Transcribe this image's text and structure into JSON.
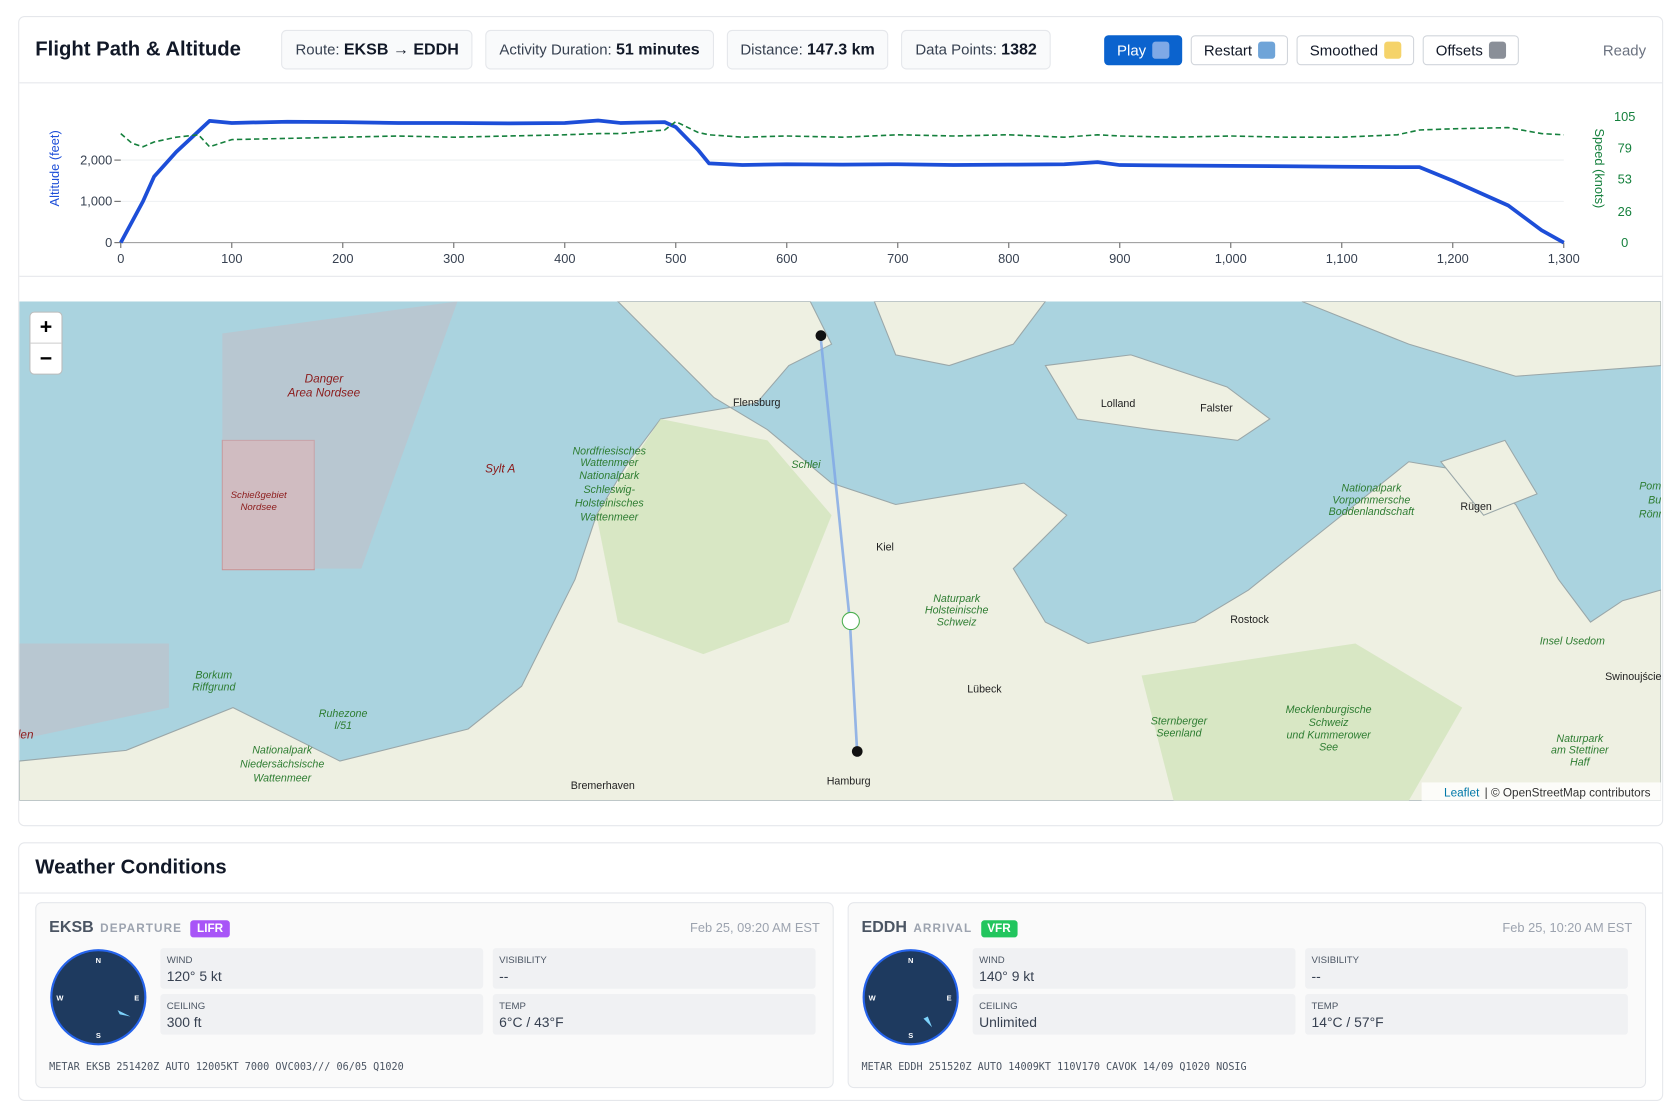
{
  "header": {
    "title": "Flight Path & Altitude",
    "stats": [
      {
        "label": "Route:",
        "value": "EKSB → EDDH"
      },
      {
        "label": "Activity Duration:",
        "value": "51 minutes"
      },
      {
        "label": "Distance:",
        "value": "147.3 km"
      },
      {
        "label": "Data Points:",
        "value": "1382"
      }
    ],
    "buttons": [
      "Play",
      "Restart",
      "Smoothed",
      "Offsets"
    ],
    "status": "Ready"
  },
  "chart_data": {
    "type": "line",
    "y_label": "Altitude (feet)",
    "y2_label": "Speed (knots)",
    "x": [
      0,
      10,
      20,
      30,
      50,
      70,
      80,
      100,
      150,
      200,
      250,
      300,
      350,
      400,
      430,
      450,
      490,
      500,
      520,
      530,
      560,
      600,
      650,
      700,
      750,
      800,
      850,
      880,
      900,
      950,
      1000,
      1050,
      1100,
      1150,
      1170,
      1200,
      1250,
      1280,
      1300
    ],
    "series": [
      {
        "name": "Altitude",
        "color": "#1d4ed8",
        "dashed": false,
        "values": [
          0,
          500,
          1000,
          1600,
          2200,
          2700,
          2950,
          2900,
          2930,
          2920,
          2900,
          2900,
          2890,
          2900,
          2960,
          2900,
          2920,
          2800,
          2250,
          1920,
          1880,
          1900,
          1890,
          1900,
          1880,
          1890,
          1900,
          1950,
          1880,
          1870,
          1860,
          1850,
          1840,
          1830,
          1830,
          1500,
          900,
          300,
          0
        ]
      },
      {
        "name": "Speed",
        "color": "#15803d",
        "dashed": true,
        "axis": "y2",
        "values": [
          91,
          83,
          80,
          84,
          88,
          90,
          80,
          86,
          87,
          88,
          89,
          88,
          89,
          90,
          91,
          91,
          94,
          101,
          92,
          90,
          88,
          89,
          88,
          90,
          89,
          90,
          88,
          90,
          89,
          88,
          89,
          88,
          88,
          90,
          94,
          95,
          96,
          91,
          90
        ]
      }
    ],
    "xlim": [
      0,
      1300
    ],
    "xticks": [
      0,
      100,
      200,
      300,
      400,
      500,
      600,
      700,
      800,
      900,
      {
        "value": 1000,
        "label": "1,000"
      },
      {
        "value": 1100,
        "label": "1,100"
      },
      {
        "value": 1200,
        "label": "1,200"
      },
      {
        "value": 1300,
        "label": "1,300"
      }
    ],
    "ylim": [
      0,
      3600
    ],
    "yticks": [
      0,
      {
        "value": 1000,
        "label": "1,000"
      },
      {
        "value": 2000,
        "label": "2,000"
      }
    ],
    "y2lim": [
      0,
      124
    ],
    "y2ticks": [
      0,
      26,
      53,
      79,
      105
    ],
    "grid": true
  },
  "map": {
    "zoom_in": "+",
    "zoom_out": "−",
    "attribution_link": "Leaflet",
    "attribution": "| © OpenStreetMap contributors",
    "labels": [
      "Danger",
      "Area Nordsee",
      "Schießgebiet",
      "Nordsee",
      "Sylt A",
      "Flensburg",
      "Nordfriesisches",
      "Wattenmeer",
      "Nationalpark",
      "Schleswig-",
      "Holsteinisches",
      "Wattenmeer",
      "Schlei",
      "Kiel",
      "Naturpark",
      "Holsteinische",
      "Schweiz",
      "Lolland",
      "Falster",
      "Nationalpark",
      "Vorpommersche",
      "Boddenlandschaft",
      "Rügen",
      "Pomm",
      "Bu",
      "Rönne",
      "Rostock",
      "Insel Usedom",
      "Swinoujście",
      "Lübeck",
      "Borkum",
      "Riffgrund",
      "Ruhezone",
      "I/51",
      "Nationalpark",
      "Niedersächsische",
      "Wattenmeer",
      "Bremerhaven",
      "Hamburg",
      "Sternberger",
      "Seenland",
      "Mecklenburgische",
      "Schweiz",
      "und Kummerower",
      "See",
      "Naturpark",
      "am Stettiner",
      "Haff",
      "len"
    ]
  },
  "weather": {
    "title": "Weather Conditions",
    "stations": [
      {
        "code": "EKSB",
        "role": "DEPARTURE",
        "category": "LIFR",
        "time": "Feb 25, 09:20 AM EST",
        "compass": [
          "N",
          "E",
          "S",
          "W"
        ],
        "fields": [
          {
            "label": "WIND",
            "value": "120° 5 kt"
          },
          {
            "label": "VISIBILITY",
            "value": "--"
          },
          {
            "label": "CEILING",
            "value": "300 ft"
          },
          {
            "label": "TEMP",
            "value": "6°C / 43°F"
          }
        ],
        "metar": "METAR EKSB 251420Z AUTO 12005KT 7000 OVC003/// 06/05 Q1020"
      },
      {
        "code": "EDDH",
        "role": "ARRIVAL",
        "category": "VFR",
        "time": "Feb 25, 10:20 AM EST",
        "compass": [
          "N",
          "E",
          "S",
          "W"
        ],
        "fields": [
          {
            "label": "WIND",
            "value": "140° 9 kt"
          },
          {
            "label": "VISIBILITY",
            "value": "--"
          },
          {
            "label": "CEILING",
            "value": "Unlimited"
          },
          {
            "label": "TEMP",
            "value": "14°C / 57°F"
          }
        ],
        "metar": "METAR EDDH 251520Z AUTO 14009KT 110V170 CAVOK 14/09 Q1020 NOSIG"
      }
    ]
  }
}
